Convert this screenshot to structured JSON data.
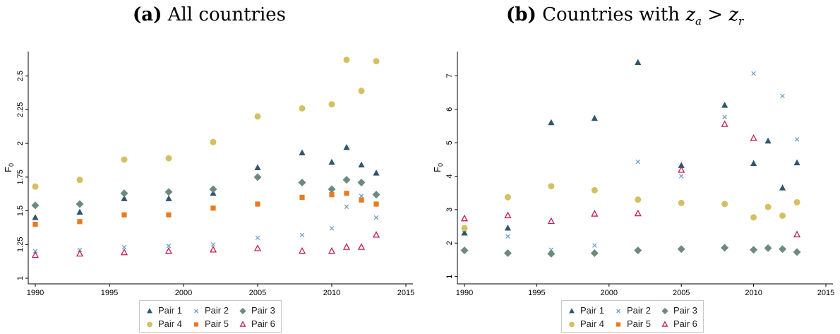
{
  "panels": [
    {
      "tag": "(a)",
      "title": "All countries",
      "math": ""
    },
    {
      "tag": "(b)",
      "title": "Countries with",
      "math": "z_a > z_r"
    }
  ],
  "series_styles": [
    {
      "name": "Pair 1",
      "marker": "triangle",
      "color": "#2e5670"
    },
    {
      "name": "Pair 2",
      "marker": "x",
      "color": "#6fa0cc"
    },
    {
      "name": "Pair 3",
      "marker": "diamond",
      "color": "#6d8a7e"
    },
    {
      "name": "Pair 4",
      "marker": "circle",
      "color": "#d4c062"
    },
    {
      "name": "Pair 5",
      "marker": "square",
      "color": "#e87a1f"
    },
    {
      "name": "Pair 6",
      "marker": "hollow-triangle",
      "color": "#c41e4e"
    }
  ],
  "chart_data": [
    {
      "type": "scatter",
      "title": "(a) All countries",
      "xlabel": "",
      "ylabel": "F0",
      "xlim": [
        1990,
        2015
      ],
      "ylim": [
        1,
        2.65
      ],
      "xticks": [
        1990,
        1995,
        2000,
        2005,
        2010,
        2015
      ],
      "yticks": [
        1,
        1.25,
        1.5,
        1.75,
        2,
        2.25,
        2.5
      ],
      "ytick_labels": [
        "1",
        "1.25",
        "1.5",
        "1.75",
        "2",
        "2.25",
        "2.5"
      ],
      "x": [
        1990,
        1993,
        1996,
        1999,
        2002,
        2005,
        2008,
        2010,
        2011,
        2012,
        2013
      ],
      "legend_position": "bottom",
      "series": [
        {
          "name": "Pair 1",
          "values": [
            1.45,
            1.49,
            1.59,
            1.59,
            1.63,
            1.82,
            1.93,
            1.86,
            1.97,
            1.84,
            1.78
          ]
        },
        {
          "name": "Pair 2",
          "values": [
            1.2,
            1.21,
            1.23,
            1.24,
            1.25,
            1.3,
            1.32,
            1.37,
            1.53,
            1.61,
            1.45
          ]
        },
        {
          "name": "Pair 3",
          "values": [
            1.54,
            1.55,
            1.63,
            1.64,
            1.66,
            1.75,
            1.71,
            1.66,
            1.73,
            1.71,
            1.62
          ]
        },
        {
          "name": "Pair 4",
          "values": [
            1.68,
            1.73,
            1.88,
            1.89,
            2.01,
            2.2,
            2.26,
            2.29,
            2.62,
            2.39,
            2.61
          ]
        },
        {
          "name": "Pair 5",
          "values": [
            1.4,
            1.42,
            1.47,
            1.47,
            1.52,
            1.55,
            1.6,
            1.62,
            1.63,
            1.58,
            1.55
          ]
        },
        {
          "name": "Pair 6",
          "values": [
            1.17,
            1.18,
            1.19,
            1.2,
            1.21,
            1.22,
            1.2,
            1.2,
            1.23,
            1.23,
            1.32
          ]
        }
      ]
    },
    {
      "type": "scatter",
      "title": "(b) Countries with z_a > z_r",
      "xlabel": "",
      "ylabel": "F0",
      "xlim": [
        1990,
        2015
      ],
      "ylim": [
        0.95,
        7.6
      ],
      "xticks": [
        1990,
        1995,
        2000,
        2005,
        2010,
        2015
      ],
      "yticks": [
        1,
        2,
        3,
        4,
        5,
        6,
        7
      ],
      "ytick_labels": [
        "1",
        "2",
        "3",
        "4",
        "5",
        "6",
        "7"
      ],
      "x": [
        1990,
        1993,
        1996,
        1999,
        2002,
        2005,
        2008,
        2010,
        2011,
        2012,
        2013
      ],
      "legend_position": "bottom",
      "series": [
        {
          "name": "Pair 1",
          "values": [
            2.3,
            2.45,
            5.6,
            5.73,
            7.4,
            4.32,
            6.12,
            4.38,
            5.05,
            3.65,
            4.4
          ]
        },
        {
          "name": "Pair 2",
          "values": [
            2.4,
            2.2,
            1.8,
            1.93,
            4.43,
            4.0,
            5.77,
            7.07,
            null,
            6.4,
            5.1
          ]
        },
        {
          "name": "Pair 3",
          "values": [
            1.78,
            1.7,
            1.68,
            1.7,
            1.78,
            1.82,
            1.86,
            1.8,
            1.85,
            1.82,
            1.73
          ]
        },
        {
          "name": "Pair 4",
          "values": [
            2.45,
            3.37,
            3.7,
            3.58,
            3.3,
            3.2,
            3.17,
            2.77,
            3.08,
            2.82,
            3.22
          ]
        },
        {
          "name": "Pair 5",
          "values": [
            null,
            null,
            null,
            null,
            null,
            null,
            null,
            null,
            null,
            null,
            null
          ]
        },
        {
          "name": "Pair 6",
          "values": [
            2.73,
            2.82,
            2.65,
            2.87,
            2.88,
            4.18,
            5.55,
            5.13,
            null,
            null,
            2.25
          ]
        }
      ]
    }
  ]
}
